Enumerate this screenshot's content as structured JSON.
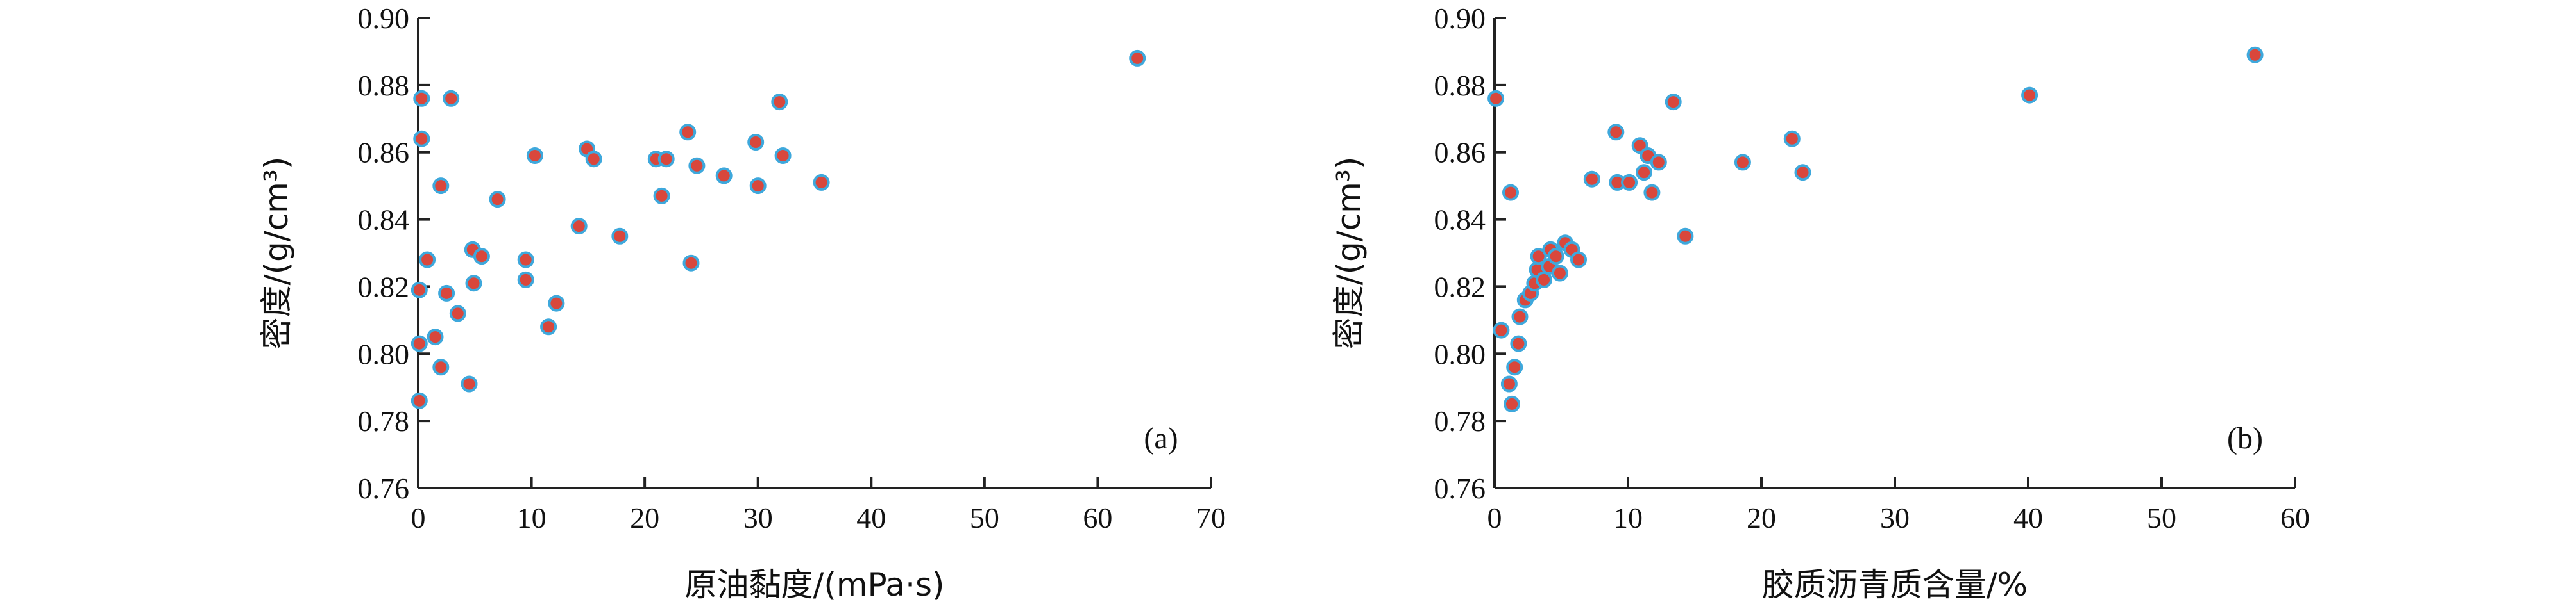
{
  "chart_data": [
    {
      "type": "scatter",
      "panel_label": "(a)",
      "xlabel": "原油黏度/(mPa·s)",
      "ylabel": "密度/(g/cm³)",
      "xlim": [
        0,
        70
      ],
      "ylim": [
        0.76,
        0.9
      ],
      "x_ticks": [
        "0",
        "10",
        "20",
        "30",
        "40",
        "50",
        "60",
        "70"
      ],
      "y_ticks": [
        "0.76",
        "0.78",
        "0.80",
        "0.82",
        "0.84",
        "0.86",
        "0.88",
        "0.90"
      ],
      "grid": false,
      "marker_fill": "#d9473c",
      "marker_edge": "#3ea8dc",
      "points": [
        [
          0.1,
          0.786
        ],
        [
          0.1,
          0.803
        ],
        [
          0.1,
          0.819
        ],
        [
          0.3,
          0.864
        ],
        [
          0.3,
          0.876
        ],
        [
          0.8,
          0.828
        ],
        [
          1.5,
          0.805
        ],
        [
          2.0,
          0.796
        ],
        [
          2.0,
          0.85
        ],
        [
          2.5,
          0.818
        ],
        [
          2.9,
          0.876
        ],
        [
          3.5,
          0.812
        ],
        [
          4.5,
          0.791
        ],
        [
          4.8,
          0.831
        ],
        [
          4.9,
          0.821
        ],
        [
          5.6,
          0.829
        ],
        [
          7.0,
          0.846
        ],
        [
          9.5,
          0.822
        ],
        [
          9.5,
          0.828
        ],
        [
          10.3,
          0.859
        ],
        [
          11.5,
          0.808
        ],
        [
          12.2,
          0.815
        ],
        [
          14.2,
          0.838
        ],
        [
          14.9,
          0.861
        ],
        [
          15.5,
          0.858
        ],
        [
          17.8,
          0.835
        ],
        [
          21.0,
          0.858
        ],
        [
          21.5,
          0.847
        ],
        [
          21.9,
          0.858
        ],
        [
          23.8,
          0.866
        ],
        [
          24.1,
          0.827
        ],
        [
          24.6,
          0.856
        ],
        [
          27.0,
          0.853
        ],
        [
          29.8,
          0.863
        ],
        [
          30.0,
          0.85
        ],
        [
          31.9,
          0.875
        ],
        [
          32.2,
          0.859
        ],
        [
          35.6,
          0.851
        ],
        [
          63.5,
          0.888
        ]
      ]
    },
    {
      "type": "scatter",
      "panel_label": "(b)",
      "xlabel": "胶质沥青质含量/%",
      "ylabel": "密度/(g/cm³)",
      "xlim": [
        0,
        60
      ],
      "ylim": [
        0.76,
        0.9
      ],
      "x_ticks": [
        "0",
        "10",
        "20",
        "30",
        "40",
        "50",
        "60"
      ],
      "y_ticks": [
        "0.76",
        "0.78",
        "0.80",
        "0.82",
        "0.84",
        "0.86",
        "0.88",
        "0.90"
      ],
      "grid": false,
      "marker_fill": "#d9473c",
      "marker_edge": "#3ea8dc",
      "points": [
        [
          0.1,
          0.876
        ],
        [
          0.5,
          0.807
        ],
        [
          1.1,
          0.791
        ],
        [
          1.2,
          0.848
        ],
        [
          1.3,
          0.785
        ],
        [
          1.5,
          0.796
        ],
        [
          1.8,
          0.803
        ],
        [
          1.9,
          0.811
        ],
        [
          2.3,
          0.816
        ],
        [
          2.7,
          0.818
        ],
        [
          3.0,
          0.821
        ],
        [
          3.2,
          0.825
        ],
        [
          3.3,
          0.829
        ],
        [
          3.7,
          0.822
        ],
        [
          4.1,
          0.826
        ],
        [
          4.2,
          0.831
        ],
        [
          4.6,
          0.829
        ],
        [
          4.9,
          0.824
        ],
        [
          5.3,
          0.833
        ],
        [
          5.8,
          0.831
        ],
        [
          6.3,
          0.828
        ],
        [
          7.3,
          0.852
        ],
        [
          9.1,
          0.866
        ],
        [
          9.2,
          0.851
        ],
        [
          10.1,
          0.851
        ],
        [
          10.9,
          0.862
        ],
        [
          11.2,
          0.854
        ],
        [
          11.5,
          0.859
        ],
        [
          11.8,
          0.848
        ],
        [
          12.3,
          0.857
        ],
        [
          13.4,
          0.875
        ],
        [
          14.3,
          0.835
        ],
        [
          18.6,
          0.857
        ],
        [
          22.3,
          0.864
        ],
        [
          23.1,
          0.854
        ],
        [
          40.1,
          0.877
        ],
        [
          57.0,
          0.889
        ]
      ]
    }
  ]
}
